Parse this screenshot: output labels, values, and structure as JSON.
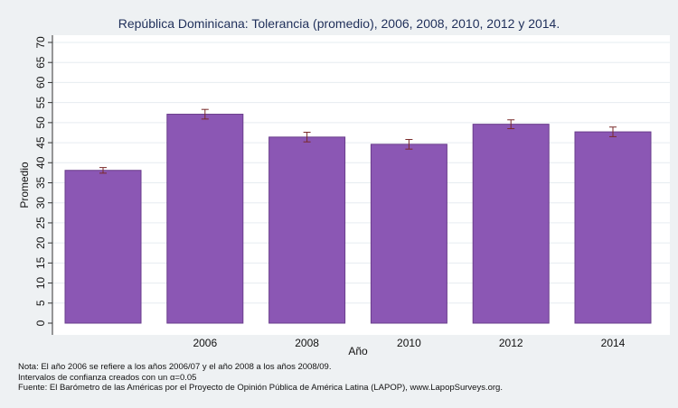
{
  "chart_data": {
    "type": "bar",
    "title": "República Dominicana: Tolerancia (promedio), 2006, 2008, 2010, 2012 y 2014.",
    "xlabel": "Año",
    "ylabel": "Promedio",
    "ylim": [
      0,
      70
    ],
    "yticks": [
      "0",
      "5",
      "10",
      "15",
      "20",
      "25",
      "30",
      "35",
      "40",
      "45",
      "50",
      "55",
      "60",
      "65",
      "70"
    ],
    "categories": [
      "",
      "2006",
      "2008",
      "2010",
      "2012",
      "2014"
    ],
    "values": [
      38.1,
      52.1,
      46.4,
      44.6,
      49.6,
      47.7
    ],
    "ci_lower": [
      37.4,
      50.9,
      45.2,
      43.4,
      48.5,
      46.5
    ],
    "ci_upper": [
      38.8,
      53.3,
      47.6,
      45.8,
      50.7,
      48.9
    ],
    "bar_color": "#8b57b4",
    "errorbar_color": "#7a2a2a",
    "grid": true,
    "legend": "none"
  },
  "notes": {
    "line1": "Nota: El año 2006 se refiere a los años 2006/07 y el año 2008 a los años 2008/09.",
    "line2": "Intervalos de confianza creados con un α=0.05",
    "line3": "Fuente: El Barómetro de las Américas por el Proyecto de Opinión Pública de América Latina (LAPOP), www.LapopSurveys.org."
  }
}
